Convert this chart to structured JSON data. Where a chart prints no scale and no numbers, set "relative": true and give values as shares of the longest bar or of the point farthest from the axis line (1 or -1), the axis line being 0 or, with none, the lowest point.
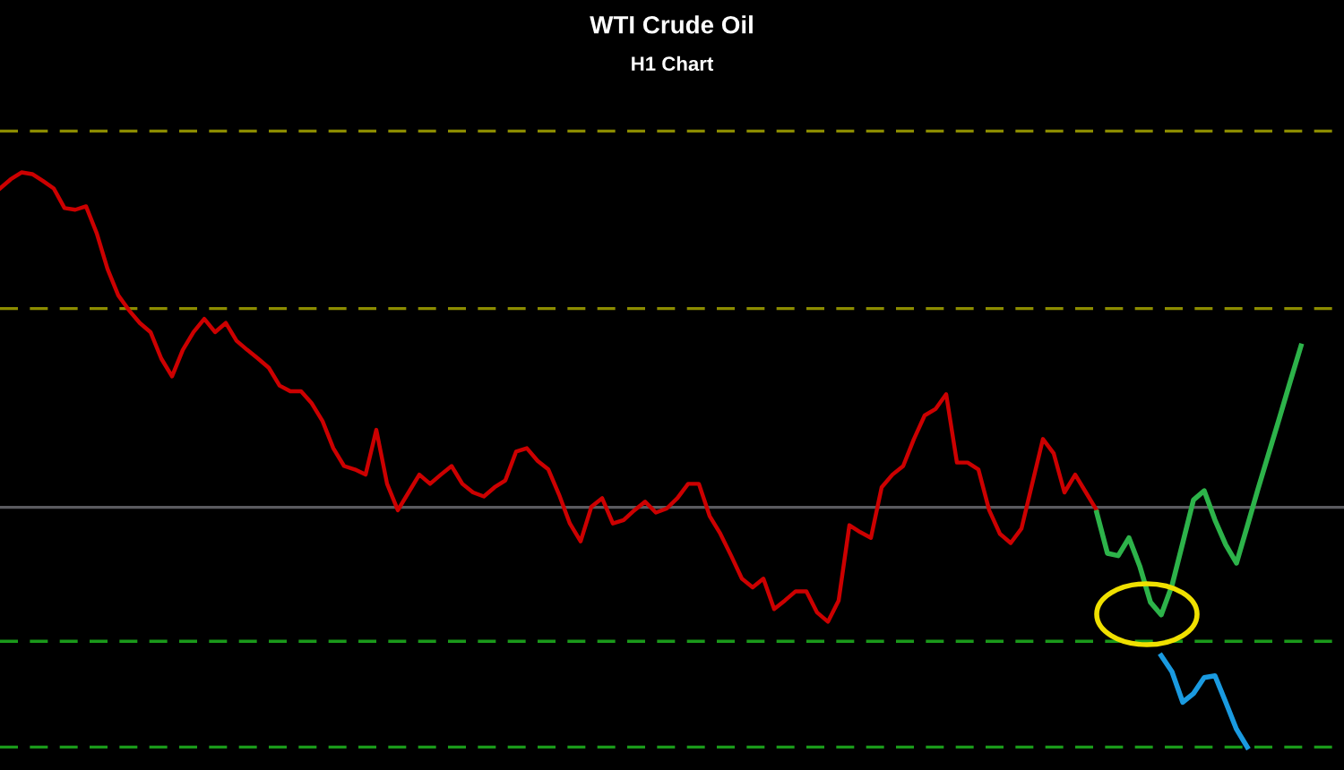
{
  "chart_data": {
    "type": "line",
    "title": "WTI Crude Oil",
    "subtitle": "H1 Chart",
    "relative": true,
    "marker": "none",
    "categories": [
      null,
      null,
      null,
      null,
      null,
      null,
      null,
      null,
      null,
      null,
      null,
      null,
      null,
      null,
      null,
      null,
      null,
      null,
      null,
      null,
      null,
      null,
      null,
      null,
      null,
      null,
      null,
      null,
      null,
      null,
      null,
      null,
      null,
      null,
      null,
      null,
      null,
      null,
      null,
      null,
      null,
      null,
      null,
      null,
      null,
      null,
      null,
      null,
      null,
      null,
      null,
      null,
      null,
      null,
      null,
      null,
      null,
      null,
      null,
      null,
      null,
      null,
      null,
      null,
      null,
      null,
      null,
      null,
      null,
      null,
      null,
      null,
      null,
      null,
      null,
      null,
      null,
      null,
      null,
      null,
      null,
      null,
      null,
      null,
      null,
      null,
      null,
      null,
      null,
      null,
      null,
      null,
      null,
      null,
      null,
      null,
      null,
      null,
      null,
      null,
      null,
      null,
      null,
      null,
      null,
      null,
      null,
      null,
      null,
      null,
      null,
      null,
      null,
      null,
      null,
      null,
      null,
      null,
      null,
      null,
      null,
      null,
      null,
      null,
      null
    ],
    "series": [
      {
        "color": "#cc0000",
        "values": [
          0.972,
          0.988,
          1.0,
          0.997,
          0.985,
          0.972,
          0.938,
          0.935,
          0.941,
          0.894,
          0.832,
          0.786,
          0.76,
          0.738,
          0.722,
          0.676,
          0.645,
          0.691,
          0.722,
          0.745,
          0.722,
          0.738,
          0.707,
          0.691,
          0.676,
          0.66,
          0.629,
          0.619,
          0.619,
          0.598,
          0.567,
          0.52,
          0.489,
          0.483,
          0.474,
          0.552,
          0.458,
          0.412,
          0.443,
          0.474,
          0.458,
          0.474,
          0.489,
          0.458,
          0.443,
          0.436,
          0.452,
          0.464,
          0.514,
          0.52,
          0.498,
          0.483,
          0.439,
          0.389,
          0.358,
          0.418,
          0.433,
          0.389,
          0.395,
          0.412,
          0.427,
          0.408,
          0.415,
          0.433,
          0.458,
          0.458,
          0.402,
          0.371,
          0.333,
          0.293,
          0.278,
          0.293,
          0.24,
          0.255,
          0.271,
          0.271,
          0.234,
          0.218,
          0.255,
          0.386,
          0.374,
          0.364,
          0.452,
          0.474,
          0.489,
          0.536,
          0.577,
          0.588,
          0.614,
          0.495,
          0.495,
          0.483,
          0.412,
          0.371,
          0.355,
          0.38,
          0.458,
          0.536,
          0.511,
          0.443,
          0.474,
          0.443,
          0.412,
          null,
          null,
          null,
          null,
          null,
          null,
          null,
          null,
          null,
          null,
          null,
          null,
          null,
          null,
          null,
          null,
          null,
          null,
          null,
          null,
          null,
          null
        ]
      },
      {
        "color": "#2db34a",
        "values": [
          null,
          null,
          null,
          null,
          null,
          null,
          null,
          null,
          null,
          null,
          null,
          null,
          null,
          null,
          null,
          null,
          null,
          null,
          null,
          null,
          null,
          null,
          null,
          null,
          null,
          null,
          null,
          null,
          null,
          null,
          null,
          null,
          null,
          null,
          null,
          null,
          null,
          null,
          null,
          null,
          null,
          null,
          null,
          null,
          null,
          null,
          null,
          null,
          null,
          null,
          null,
          null,
          null,
          null,
          null,
          null,
          null,
          null,
          null,
          null,
          null,
          null,
          null,
          null,
          null,
          null,
          null,
          null,
          null,
          null,
          null,
          null,
          null,
          null,
          null,
          null,
          null,
          null,
          null,
          null,
          null,
          null,
          null,
          null,
          null,
          null,
          null,
          null,
          null,
          null,
          null,
          null,
          null,
          null,
          null,
          null,
          null,
          null,
          null,
          null,
          null,
          null,
          0.408,
          0.337,
          0.333,
          0.364,
          0.315,
          0.252,
          0.23,
          0.281,
          0.355,
          0.43,
          0.446,
          0.395,
          0.352,
          0.32,
          0.384,
          0.449,
          0.511,
          0.573,
          0.636,
          0.698,
          null,
          null,
          null
        ]
      },
      {
        "color": "#1a9ae0",
        "values": [
          null,
          null,
          null,
          null,
          null,
          null,
          null,
          null,
          null,
          null,
          null,
          null,
          null,
          null,
          null,
          null,
          null,
          null,
          null,
          null,
          null,
          null,
          null,
          null,
          null,
          null,
          null,
          null,
          null,
          null,
          null,
          null,
          null,
          null,
          null,
          null,
          null,
          null,
          null,
          null,
          null,
          null,
          null,
          null,
          null,
          null,
          null,
          null,
          null,
          null,
          null,
          null,
          null,
          null,
          null,
          null,
          null,
          null,
          null,
          null,
          null,
          null,
          null,
          null,
          null,
          null,
          null,
          null,
          null,
          null,
          null,
          null,
          null,
          null,
          null,
          null,
          null,
          null,
          null,
          null,
          null,
          null,
          null,
          null,
          null,
          null,
          null,
          null,
          null,
          null,
          null,
          null,
          null,
          null,
          null,
          null,
          null,
          null,
          null,
          null,
          null,
          null,
          null,
          null,
          null,
          null,
          null,
          null,
          0.159,
          0.131,
          0.078,
          0.093,
          0.121,
          0.124,
          0.078,
          0.031,
          0.0,
          null,
          null,
          null,
          null,
          null,
          null,
          null,
          null
        ]
      }
    ],
    "ref_lines": [
      {
        "axis": "y",
        "value": 1.072,
        "color": "#8c8c00",
        "line_style": "dashed"
      },
      {
        "axis": "y",
        "value": 0.763,
        "color": "#8c8c00",
        "line_style": "dashed"
      },
      {
        "axis": "y",
        "value": 0.417,
        "color": "#5a5a5f",
        "line_style": "solid"
      },
      {
        "axis": "y",
        "value": 0.184,
        "color": "#1a9a1a",
        "line_style": "dashed"
      },
      {
        "axis": "y",
        "value": 0.0,
        "color": "#1a9a1a",
        "line_style": "dashed"
      }
    ]
  }
}
